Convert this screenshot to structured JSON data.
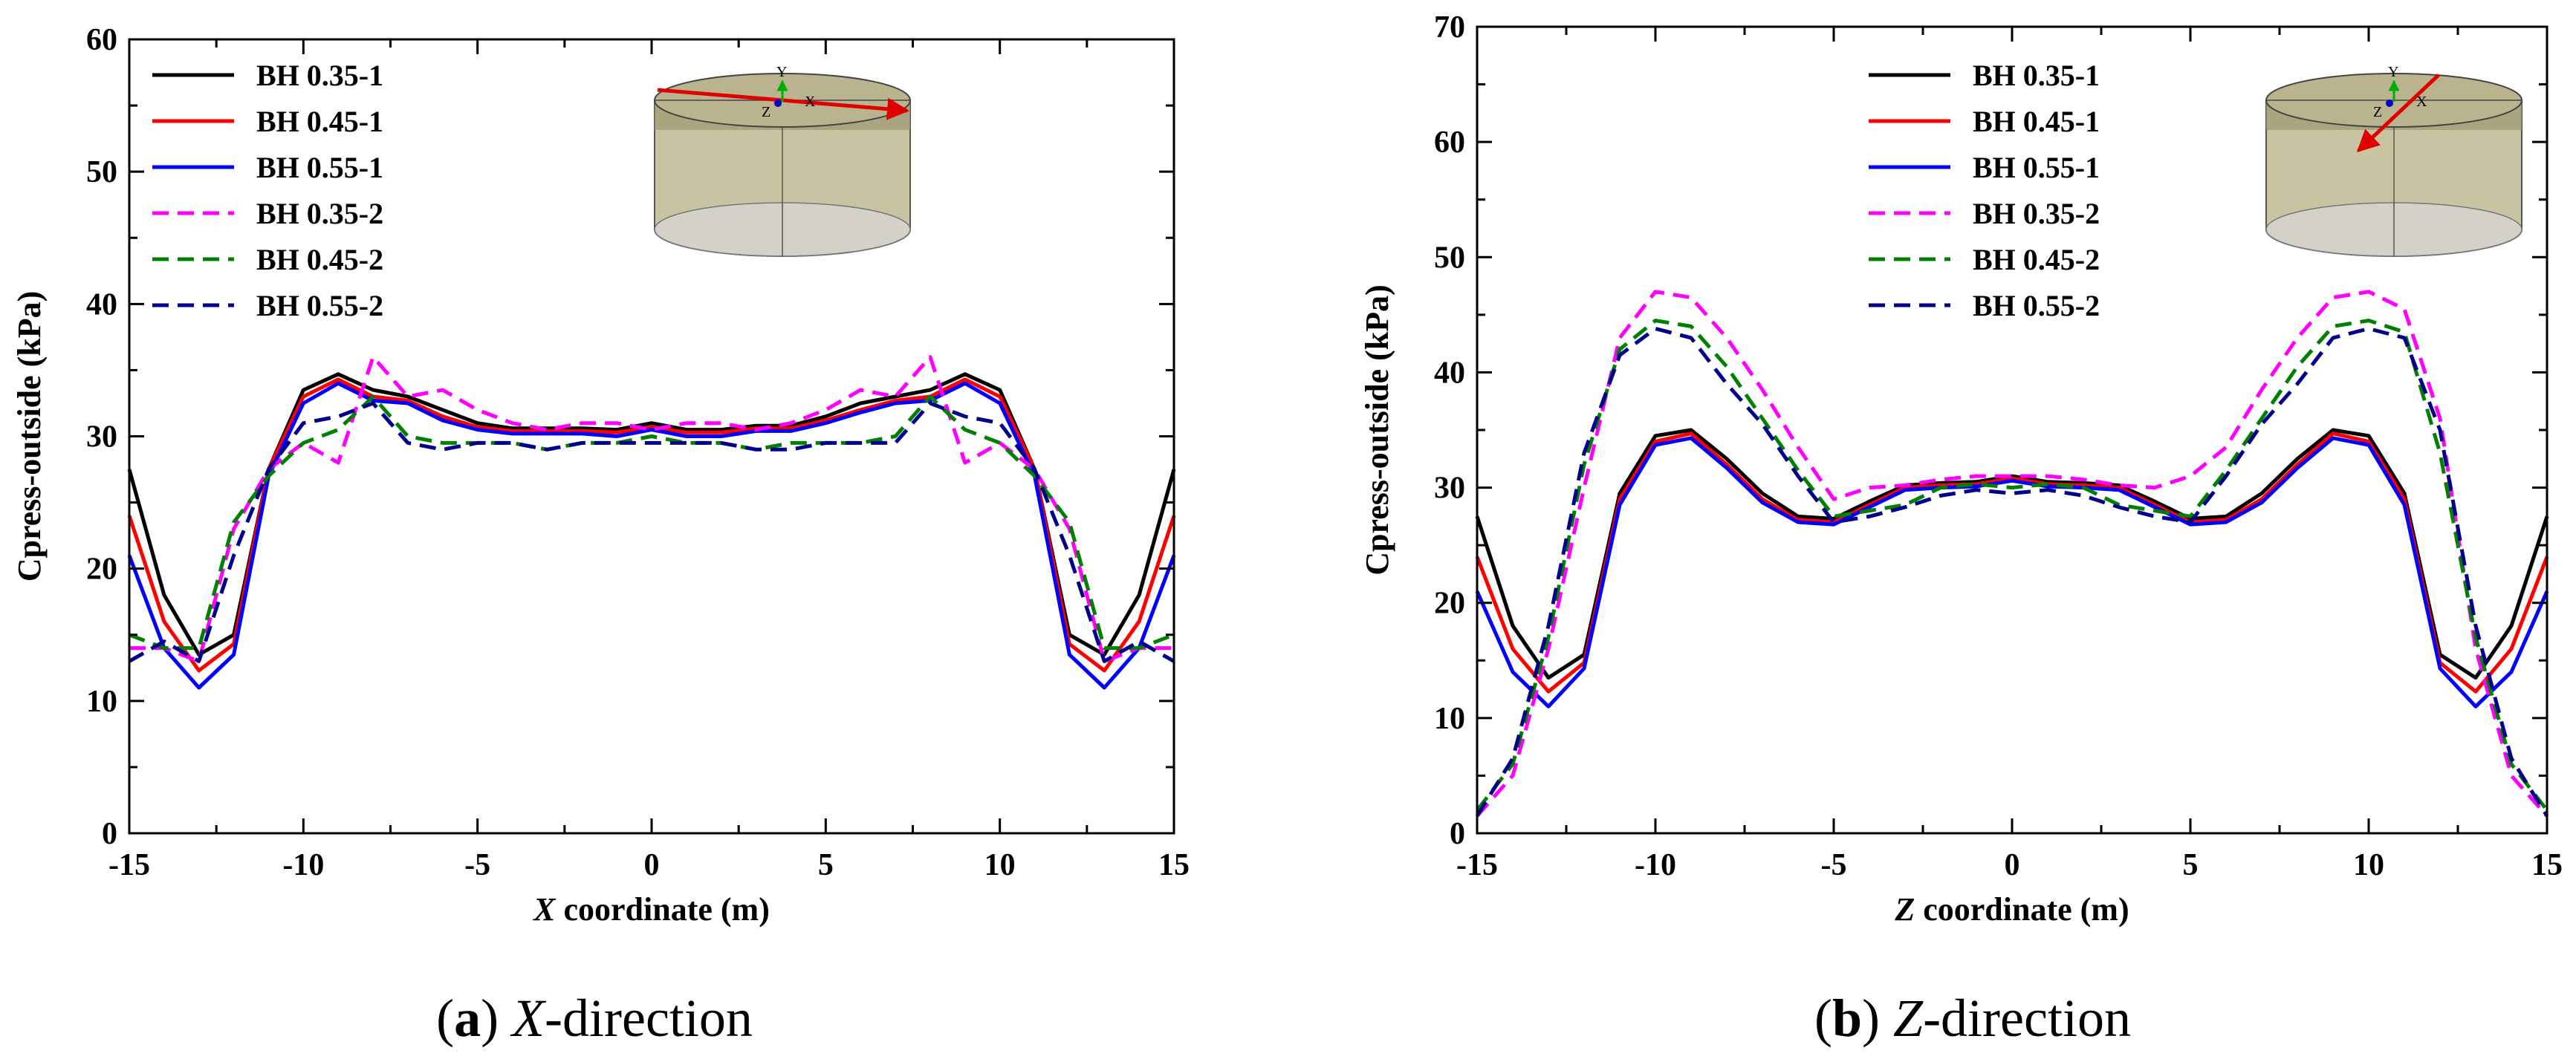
{
  "chart_data": [
    {
      "type": "line",
      "panel": "a",
      "caption": {
        "letter": "(a)",
        "axis": "X",
        "text": "-direction"
      },
      "xlabel": {
        "italic": "X",
        "rest": " coordinate (m)"
      },
      "ylabel": "Cpress-outside (kPa)",
      "xlim": [
        -15,
        15
      ],
      "ylim": [
        0,
        60
      ],
      "xticks": [
        -15,
        -10,
        -5,
        0,
        5,
        10,
        15
      ],
      "yticks": [
        0,
        10,
        20,
        30,
        40,
        50,
        60
      ],
      "legend_position": "top-left",
      "inset": {
        "description": "cylinder",
        "axis_labels": [
          "Y",
          "X",
          "Z"
        ],
        "arrow_direction": "X"
      },
      "x": [
        -15,
        -14,
        -13,
        -12,
        -11,
        -10,
        -9,
        -8,
        -7,
        -6,
        -5,
        -4,
        -3,
        -2,
        -1,
        0,
        1,
        2,
        3,
        4,
        5,
        6,
        7,
        8,
        9,
        10,
        11,
        12,
        13,
        14,
        15
      ],
      "series": [
        {
          "name": "BH 0.35-1",
          "color": "#000000",
          "dash": "solid",
          "values": [
            27.5,
            18.0,
            13.5,
            15.0,
            27.5,
            33.5,
            34.7,
            33.5,
            33.0,
            32.0,
            31.0,
            30.6,
            30.6,
            30.6,
            30.5,
            31.0,
            30.5,
            30.5,
            30.8,
            30.8,
            31.5,
            32.5,
            33.0,
            33.5,
            34.7,
            33.5,
            27.5,
            15.0,
            13.5,
            18.0,
            27.5
          ]
        },
        {
          "name": "BH 0.45-1",
          "color": "#ff0000",
          "dash": "solid",
          "values": [
            24.0,
            16.0,
            12.3,
            14.3,
            27.5,
            33.0,
            34.3,
            33.0,
            32.7,
            31.5,
            30.7,
            30.4,
            30.4,
            30.4,
            30.3,
            30.7,
            30.3,
            30.3,
            30.6,
            30.6,
            31.2,
            32.0,
            32.7,
            33.0,
            34.3,
            33.0,
            27.5,
            14.3,
            12.3,
            16.0,
            24.0
          ]
        },
        {
          "name": "BH 0.55-1",
          "color": "#0000ff",
          "dash": "solid",
          "values": [
            21.0,
            14.0,
            11.0,
            13.5,
            27.0,
            32.5,
            34.0,
            32.7,
            32.5,
            31.2,
            30.5,
            30.2,
            30.2,
            30.2,
            30.0,
            30.5,
            30.0,
            30.0,
            30.4,
            30.4,
            31.0,
            31.8,
            32.5,
            32.7,
            34.0,
            32.5,
            27.0,
            13.5,
            11.0,
            14.0,
            21.0
          ]
        },
        {
          "name": "BH 0.35-2",
          "color": "#ff00ff",
          "dash": "dash",
          "values": [
            14.0,
            14.0,
            13.0,
            23.0,
            27.5,
            29.5,
            28.0,
            36.0,
            33.0,
            33.5,
            32.0,
            31.0,
            30.5,
            31.0,
            31.0,
            30.5,
            31.0,
            31.0,
            30.5,
            31.0,
            32.0,
            33.5,
            33.0,
            36.0,
            28.0,
            29.5,
            27.5,
            23.0,
            13.0,
            14.0,
            14.0
          ]
        },
        {
          "name": "BH 0.45-2",
          "color": "#008000",
          "dash": "dash",
          "values": [
            15.0,
            14.0,
            14.0,
            23.5,
            27.0,
            29.5,
            30.5,
            33.0,
            30.0,
            29.5,
            29.5,
            29.5,
            29.0,
            29.5,
            29.5,
            30.0,
            29.5,
            29.5,
            29.0,
            29.5,
            29.5,
            29.5,
            30.0,
            33.0,
            30.5,
            29.5,
            27.0,
            23.5,
            14.0,
            14.0,
            15.0
          ]
        },
        {
          "name": "BH 0.55-2",
          "color": "#00008b",
          "dash": "dash",
          "values": [
            13.0,
            14.5,
            13.0,
            21.0,
            27.5,
            31.0,
            31.5,
            32.5,
            29.5,
            29.0,
            29.5,
            29.5,
            29.0,
            29.5,
            29.5,
            29.5,
            29.5,
            29.5,
            29.0,
            29.0,
            29.5,
            29.5,
            29.5,
            32.5,
            31.5,
            31.0,
            27.5,
            21.0,
            13.0,
            14.5,
            13.0
          ]
        }
      ]
    },
    {
      "type": "line",
      "panel": "b",
      "caption": {
        "letter": "(b)",
        "axis": "Z",
        "text": "-direction"
      },
      "xlabel": {
        "italic": "Z",
        "rest": " coordinate (m)"
      },
      "ylabel": "Cpress-outside (kPa)",
      "xlim": [
        -15,
        15
      ],
      "ylim": [
        0,
        70
      ],
      "xticks": [
        -15,
        -10,
        -5,
        0,
        5,
        10,
        15
      ],
      "yticks": [
        0,
        10,
        20,
        30,
        40,
        50,
        60,
        70
      ],
      "legend_position": "top-center",
      "inset": {
        "description": "cylinder",
        "axis_labels": [
          "Y",
          "X",
          "Z"
        ],
        "arrow_direction": "Z"
      },
      "x": [
        -15,
        -14,
        -13,
        -12,
        -11,
        -10,
        -9,
        -8,
        -7,
        -6,
        -5,
        -4,
        -3,
        -2,
        -1,
        0,
        1,
        2,
        3,
        4,
        5,
        6,
        7,
        8,
        9,
        10,
        11,
        12,
        13,
        14,
        15
      ],
      "series": [
        {
          "name": "BH 0.35-1",
          "color": "#000000",
          "dash": "solid",
          "values": [
            27.5,
            18.0,
            13.5,
            15.5,
            29.5,
            34.5,
            35.0,
            32.5,
            29.5,
            27.5,
            27.3,
            28.8,
            30.2,
            30.4,
            30.5,
            31.0,
            30.5,
            30.4,
            30.2,
            28.8,
            27.3,
            27.5,
            29.5,
            32.5,
            35.0,
            34.5,
            29.5,
            15.5,
            13.5,
            18.0,
            27.5
          ]
        },
        {
          "name": "BH 0.45-1",
          "color": "#ff0000",
          "dash": "solid",
          "values": [
            24.0,
            16.0,
            12.3,
            14.8,
            29.0,
            34.0,
            34.7,
            32.0,
            29.0,
            27.2,
            27.0,
            28.5,
            30.0,
            30.2,
            30.3,
            30.8,
            30.3,
            30.2,
            30.0,
            28.5,
            27.0,
            27.2,
            29.0,
            32.0,
            34.7,
            34.0,
            29.0,
            14.8,
            12.3,
            16.0,
            24.0
          ]
        },
        {
          "name": "BH 0.55-1",
          "color": "#0000ff",
          "dash": "solid",
          "values": [
            21.0,
            14.0,
            11.0,
            14.3,
            28.5,
            33.7,
            34.3,
            31.7,
            28.7,
            27.0,
            26.8,
            28.3,
            29.8,
            30.0,
            30.1,
            30.6,
            30.1,
            30.0,
            29.8,
            28.3,
            26.8,
            27.0,
            28.7,
            31.7,
            34.3,
            33.7,
            28.5,
            14.3,
            11.0,
            14.0,
            21.0
          ]
        },
        {
          "name": "BH 0.35-2",
          "color": "#ff00ff",
          "dash": "dash",
          "values": [
            1.5,
            5.0,
            16.0,
            30.0,
            43.0,
            47.0,
            46.5,
            43.0,
            38.5,
            33.5,
            29.0,
            30.0,
            30.2,
            30.7,
            31.0,
            31.0,
            31.0,
            30.7,
            30.2,
            30.0,
            31.0,
            33.5,
            38.5,
            43.0,
            46.5,
            47.0,
            45.5,
            36.0,
            16.0,
            5.0,
            1.5
          ]
        },
        {
          "name": "BH 0.45-2",
          "color": "#008000",
          "dash": "dash",
          "values": [
            2.0,
            6.0,
            17.0,
            32.0,
            42.0,
            44.5,
            44.0,
            40.5,
            36.0,
            31.5,
            27.5,
            28.0,
            28.5,
            30.0,
            30.3,
            30.0,
            30.3,
            30.0,
            28.5,
            28.0,
            27.5,
            31.5,
            36.0,
            40.5,
            44.0,
            44.5,
            43.5,
            33.0,
            17.0,
            6.0,
            2.0
          ]
        },
        {
          "name": "BH 0.55-2",
          "color": "#00008b",
          "dash": "dash",
          "values": [
            1.5,
            6.5,
            18.0,
            33.0,
            41.5,
            43.8,
            43.0,
            39.0,
            35.5,
            31.0,
            27.0,
            27.5,
            28.3,
            29.3,
            29.8,
            29.5,
            29.8,
            29.3,
            28.3,
            27.5,
            27.0,
            31.0,
            35.5,
            39.0,
            43.0,
            43.8,
            43.0,
            35.0,
            18.0,
            6.5,
            1.5
          ]
        }
      ]
    }
  ]
}
